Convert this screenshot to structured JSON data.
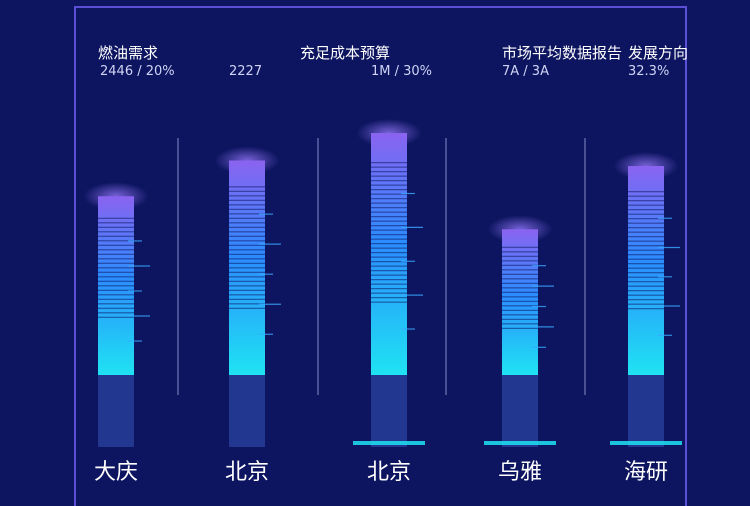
{
  "chart_data": {
    "type": "bar",
    "categories": [
      "大庆",
      "北京",
      "北京",
      "乌雅",
      "海研"
    ],
    "values": [
      0.65,
      0.78,
      0.88,
      0.53,
      0.76
    ],
    "ylim": [
      0,
      1
    ],
    "grid": false,
    "legend": "none",
    "top_labels": [
      {
        "title": "燃油需求",
        "value": "2446 / 20%"
      },
      {
        "title": "",
        "value": "2227"
      },
      {
        "title": "充足成本预算",
        "value": "1M / 30%"
      },
      {
        "title": "市场平均数据报告",
        "value": "7A / 3A"
      },
      {
        "title": "发展方向",
        "value": "32.3%"
      }
    ]
  },
  "colors": {
    "background": "#0d1560",
    "frame": "#5b4fd8",
    "bar_top": "#8a63f0",
    "bar_mid": "#2b8cff",
    "bar_bottom": "#1fe3f2",
    "bar_base": "#22378f",
    "axis": "#8c93c8"
  }
}
